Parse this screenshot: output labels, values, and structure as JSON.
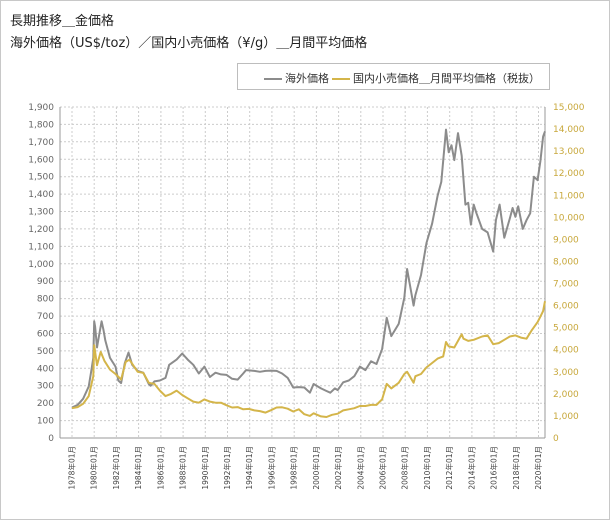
{
  "header": {
    "line1": "長期推移＿金価格",
    "line2": "海外価格（US$/toz）／国内小売価格（¥/g）＿月間平均価格"
  },
  "colors": {
    "overseas": "#8c8c8c",
    "domestic": "#d4b54a",
    "grid": "#cccccc",
    "axis": "#999999",
    "left_tick": "#666666",
    "right_tick": "#c8a83c"
  },
  "chart_data": {
    "type": "line",
    "title": "長期推移＿金価格",
    "subtitle": "海外価格（US$/toz）／国内小売価格（¥/g）＿月間平均価格",
    "legend_position": "top-right",
    "grid": true,
    "x_ticks": [
      "1978年01月",
      "1980年01月",
      "1982年01月",
      "1984年01月",
      "1986年01月",
      "1988年01月",
      "1990年01月",
      "1992年01月",
      "1994年01月",
      "1996年01月",
      "1998年01月",
      "2000年01月",
      "2002年01月",
      "2004年01月",
      "2006年01月",
      "2008年01月",
      "2010年01月",
      "2012年01月",
      "2014年01月",
      "2016年01月",
      "2018年01月",
      "2020年01月"
    ],
    "y_left": {
      "ticks": [
        "0",
        "100",
        "200",
        "300",
        "400",
        "500",
        "600",
        "700",
        "800",
        "900",
        "1,000",
        "1,100",
        "1,200",
        "1,300",
        "1,400",
        "1,500",
        "1,600",
        "1,700",
        "1,800",
        "1,900"
      ],
      "min": 0,
      "max": 1900
    },
    "y_right": {
      "ticks": [
        "0",
        "1,000",
        "2,000",
        "3,000",
        "4,000",
        "5,000",
        "6,000",
        "7,000",
        "8,000",
        "9,000",
        "10,000",
        "11,000",
        "12,000",
        "13,000",
        "14,000",
        "15,000"
      ],
      "min": 0,
      "max": 15000
    },
    "series": [
      {
        "name": "海外価格",
        "axis": "left",
        "points": [
          [
            "1978-01",
            175
          ],
          [
            "1978-07",
            190
          ],
          [
            "1979-01",
            225
          ],
          [
            "1979-07",
            295
          ],
          [
            "1979-10",
            390
          ],
          [
            "1979-12",
            460
          ],
          [
            "1980-01",
            670
          ],
          [
            "1980-02",
            640
          ],
          [
            "1980-04",
            520
          ],
          [
            "1980-06",
            580
          ],
          [
            "1980-09",
            670
          ],
          [
            "1980-11",
            620
          ],
          [
            "1981-01",
            560
          ],
          [
            "1981-06",
            460
          ],
          [
            "1981-12",
            410
          ],
          [
            "1982-03",
            330
          ],
          [
            "1982-06",
            315
          ],
          [
            "1982-10",
            430
          ],
          [
            "1983-02",
            490
          ],
          [
            "1983-06",
            420
          ],
          [
            "1983-12",
            385
          ],
          [
            "1984-06",
            375
          ],
          [
            "1984-12",
            310
          ],
          [
            "1985-02",
            300
          ],
          [
            "1985-06",
            325
          ],
          [
            "1985-12",
            330
          ],
          [
            "1986-06",
            345
          ],
          [
            "1986-10",
            420
          ],
          [
            "1987-06",
            450
          ],
          [
            "1987-12",
            485
          ],
          [
            "1988-06",
            450
          ],
          [
            "1988-12",
            420
          ],
          [
            "1989-06",
            370
          ],
          [
            "1989-12",
            410
          ],
          [
            "1990-06",
            350
          ],
          [
            "1990-12",
            375
          ],
          [
            "1991-06",
            365
          ],
          [
            "1991-12",
            362
          ],
          [
            "1992-06",
            340
          ],
          [
            "1992-12",
            335
          ],
          [
            "1993-06",
            370
          ],
          [
            "1993-09",
            390
          ],
          [
            "1994-06",
            385
          ],
          [
            "1994-12",
            380
          ],
          [
            "1995-06",
            385
          ],
          [
            "1995-12",
            387
          ],
          [
            "1996-06",
            385
          ],
          [
            "1996-12",
            370
          ],
          [
            "1997-06",
            345
          ],
          [
            "1997-12",
            290
          ],
          [
            "1998-06",
            292
          ],
          [
            "1998-12",
            290
          ],
          [
            "1999-06",
            260
          ],
          [
            "1999-10",
            310
          ],
          [
            "2000-06",
            285
          ],
          [
            "2000-12",
            270
          ],
          [
            "2001-04",
            260
          ],
          [
            "2001-09",
            285
          ],
          [
            "2001-12",
            275
          ],
          [
            "2002-06",
            320
          ],
          [
            "2002-12",
            330
          ],
          [
            "2003-06",
            355
          ],
          [
            "2003-12",
            410
          ],
          [
            "2004-06",
            390
          ],
          [
            "2004-12",
            440
          ],
          [
            "2005-06",
            425
          ],
          [
            "2005-12",
            510
          ],
          [
            "2006-05",
            690
          ],
          [
            "2006-10",
            585
          ],
          [
            "2007-06",
            655
          ],
          [
            "2007-12",
            805
          ],
          [
            "2008-03",
            970
          ],
          [
            "2008-10",
            760
          ],
          [
            "2008-12",
            820
          ],
          [
            "2009-06",
            935
          ],
          [
            "2009-12",
            1120
          ],
          [
            "2010-06",
            1230
          ],
          [
            "2010-12",
            1390
          ],
          [
            "2011-04",
            1470
          ],
          [
            "2011-09",
            1770
          ],
          [
            "2011-12",
            1640
          ],
          [
            "2012-03",
            1680
          ],
          [
            "2012-06",
            1595
          ],
          [
            "2012-10",
            1750
          ],
          [
            "2013-02",
            1620
          ],
          [
            "2013-06",
            1340
          ],
          [
            "2013-09",
            1350
          ],
          [
            "2013-12",
            1225
          ],
          [
            "2014-03",
            1340
          ],
          [
            "2014-06",
            1290
          ],
          [
            "2014-12",
            1200
          ],
          [
            "2015-06",
            1180
          ],
          [
            "2015-12",
            1070
          ],
          [
            "2016-03",
            1250
          ],
          [
            "2016-07",
            1340
          ],
          [
            "2016-12",
            1150
          ],
          [
            "2017-06",
            1260
          ],
          [
            "2017-09",
            1320
          ],
          [
            "2017-12",
            1270
          ],
          [
            "2018-03",
            1330
          ],
          [
            "2018-08",
            1200
          ],
          [
            "2018-12",
            1250
          ],
          [
            "2019-04",
            1290
          ],
          [
            "2019-08",
            1500
          ],
          [
            "2019-12",
            1480
          ],
          [
            "2020-03",
            1590
          ],
          [
            "2020-06",
            1730
          ],
          [
            "2020-08",
            1760
          ]
        ]
      },
      {
        "name": "国内小売価格＿月間平均価格（税抜）",
        "axis": "right",
        "points": [
          [
            "1978-01",
            1350
          ],
          [
            "1978-07",
            1400
          ],
          [
            "1979-01",
            1550
          ],
          [
            "1979-07",
            1900
          ],
          [
            "1979-12",
            2800
          ],
          [
            "1980-01",
            4200
          ],
          [
            "1980-04",
            3300
          ],
          [
            "1980-08",
            3900
          ],
          [
            "1980-12",
            3500
          ],
          [
            "1981-06",
            3100
          ],
          [
            "1981-12",
            2900
          ],
          [
            "1982-06",
            2650
          ],
          [
            "1982-11",
            3450
          ],
          [
            "1983-03",
            3550
          ],
          [
            "1983-12",
            3000
          ],
          [
            "1984-06",
            2950
          ],
          [
            "1984-12",
            2500
          ],
          [
            "1985-06",
            2450
          ],
          [
            "1985-12",
            2150
          ],
          [
            "1986-06",
            1900
          ],
          [
            "1986-12",
            2000
          ],
          [
            "1987-06",
            2150
          ],
          [
            "1987-12",
            1950
          ],
          [
            "1988-06",
            1800
          ],
          [
            "1988-12",
            1650
          ],
          [
            "1989-06",
            1600
          ],
          [
            "1989-12",
            1750
          ],
          [
            "1990-06",
            1650
          ],
          [
            "1990-12",
            1600
          ],
          [
            "1991-06",
            1600
          ],
          [
            "1991-12",
            1480
          ],
          [
            "1992-06",
            1380
          ],
          [
            "1992-12",
            1400
          ],
          [
            "1993-06",
            1300
          ],
          [
            "1993-12",
            1320
          ],
          [
            "1994-06",
            1250
          ],
          [
            "1994-12",
            1220
          ],
          [
            "1995-06",
            1150
          ],
          [
            "1995-12",
            1260
          ],
          [
            "1996-06",
            1380
          ],
          [
            "1996-12",
            1390
          ],
          [
            "1997-06",
            1330
          ],
          [
            "1997-12",
            1200
          ],
          [
            "1998-06",
            1300
          ],
          [
            "1998-12",
            1080
          ],
          [
            "1999-06",
            1000
          ],
          [
            "1999-10",
            1120
          ],
          [
            "2000-06",
            980
          ],
          [
            "2000-12",
            950
          ],
          [
            "2001-06",
            1050
          ],
          [
            "2001-12",
            1100
          ],
          [
            "2002-06",
            1250
          ],
          [
            "2002-12",
            1300
          ],
          [
            "2003-06",
            1350
          ],
          [
            "2003-12",
            1450
          ],
          [
            "2004-06",
            1450
          ],
          [
            "2004-12",
            1500
          ],
          [
            "2005-06",
            1500
          ],
          [
            "2005-12",
            1750
          ],
          [
            "2006-05",
            2450
          ],
          [
            "2006-10",
            2250
          ],
          [
            "2007-06",
            2500
          ],
          [
            "2007-12",
            2900
          ],
          [
            "2008-03",
            3000
          ],
          [
            "2008-10",
            2500
          ],
          [
            "2008-12",
            2800
          ],
          [
            "2009-06",
            2900
          ],
          [
            "2009-12",
            3200
          ],
          [
            "2010-06",
            3400
          ],
          [
            "2010-12",
            3600
          ],
          [
            "2011-06",
            3700
          ],
          [
            "2011-09",
            4350
          ],
          [
            "2011-12",
            4150
          ],
          [
            "2012-06",
            4100
          ],
          [
            "2012-10",
            4400
          ],
          [
            "2013-02",
            4700
          ],
          [
            "2013-04",
            4500
          ],
          [
            "2013-09",
            4400
          ],
          [
            "2014-03",
            4450
          ],
          [
            "2014-12",
            4600
          ],
          [
            "2015-06",
            4650
          ],
          [
            "2015-12",
            4250
          ],
          [
            "2016-06",
            4300
          ],
          [
            "2016-12",
            4450
          ],
          [
            "2017-06",
            4600
          ],
          [
            "2017-12",
            4650
          ],
          [
            "2018-06",
            4550
          ],
          [
            "2018-12",
            4500
          ],
          [
            "2019-06",
            4900
          ],
          [
            "2019-12",
            5250
          ],
          [
            "2020-03",
            5500
          ],
          [
            "2020-06",
            5750
          ],
          [
            "2020-08",
            6200
          ]
        ]
      }
    ]
  }
}
